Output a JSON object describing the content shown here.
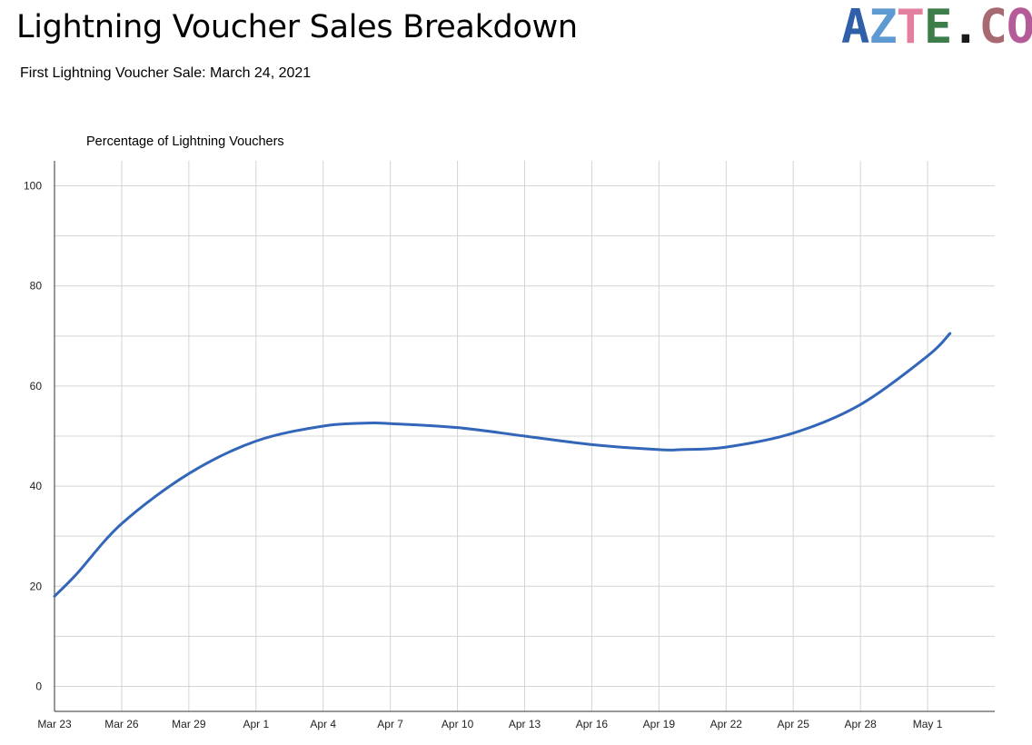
{
  "header": {
    "title": "Lightning Voucher Sales Breakdown",
    "subtitle": "First Lightning Voucher Sale: March 24, 2021"
  },
  "logo": {
    "letters": [
      {
        "char": "A",
        "color": "#2e5fa8"
      },
      {
        "char": "Z",
        "color": "#5e99d2"
      },
      {
        "char": "T",
        "color": "#e2809e"
      },
      {
        "char": "E",
        "color": "#3c7d4a"
      },
      {
        "char": ".",
        "color": "#1a1a1a"
      },
      {
        "char": "C",
        "color": "#a86a72"
      },
      {
        "char": "O",
        "color": "#b45c98"
      }
    ]
  },
  "chart_data": {
    "type": "line",
    "title": "Lightning Voucher Sales Breakdown",
    "subtitle": "First Lightning Voucher Sale: March 24, 2021",
    "xlabel": "",
    "ylabel": "Percentage of Lightning Vouchers",
    "ylim": [
      -5,
      105
    ],
    "xlim": [
      "2021-03-23",
      "2021-05-04"
    ],
    "y_ticks": [
      0,
      20,
      40,
      60,
      80,
      100
    ],
    "x_ticks": [
      {
        "date": "2021-03-23",
        "label": "Mar 23"
      },
      {
        "date": "2021-03-26",
        "label": "Mar 26"
      },
      {
        "date": "2021-03-29",
        "label": "Mar 29"
      },
      {
        "date": "2021-04-01",
        "label": "Apr 1"
      },
      {
        "date": "2021-04-04",
        "label": "Apr 4"
      },
      {
        "date": "2021-04-07",
        "label": "Apr 7"
      },
      {
        "date": "2021-04-10",
        "label": "Apr 10"
      },
      {
        "date": "2021-04-13",
        "label": "Apr 13"
      },
      {
        "date": "2021-04-16",
        "label": "Apr 16"
      },
      {
        "date": "2021-04-19",
        "label": "Apr 19"
      },
      {
        "date": "2021-04-22",
        "label": "Apr 22"
      },
      {
        "date": "2021-04-25",
        "label": "Apr 25"
      },
      {
        "date": "2021-04-28",
        "label": "Apr 28"
      },
      {
        "date": "2021-05-01",
        "label": "May 1"
      }
    ],
    "grid": true,
    "line_color": "#3366b8",
    "series": [
      {
        "x": [
          "2021-03-23",
          "2021-03-24",
          "2021-03-26",
          "2021-03-29",
          "2021-04-01",
          "2021-04-04",
          "2021-04-06",
          "2021-04-07",
          "2021-04-10",
          "2021-04-13",
          "2021-04-16",
          "2021-04-19",
          "2021-04-20",
          "2021-04-22",
          "2021-04-25",
          "2021-04-28",
          "2021-05-01",
          "2021-05-02"
        ],
        "y": [
          18,
          22.5,
          32.5,
          42.5,
          49,
          52,
          52.6,
          52.5,
          51.7,
          50,
          48.3,
          47.3,
          47.3,
          47.8,
          50.6,
          56.3,
          66,
          70.5
        ]
      }
    ]
  }
}
